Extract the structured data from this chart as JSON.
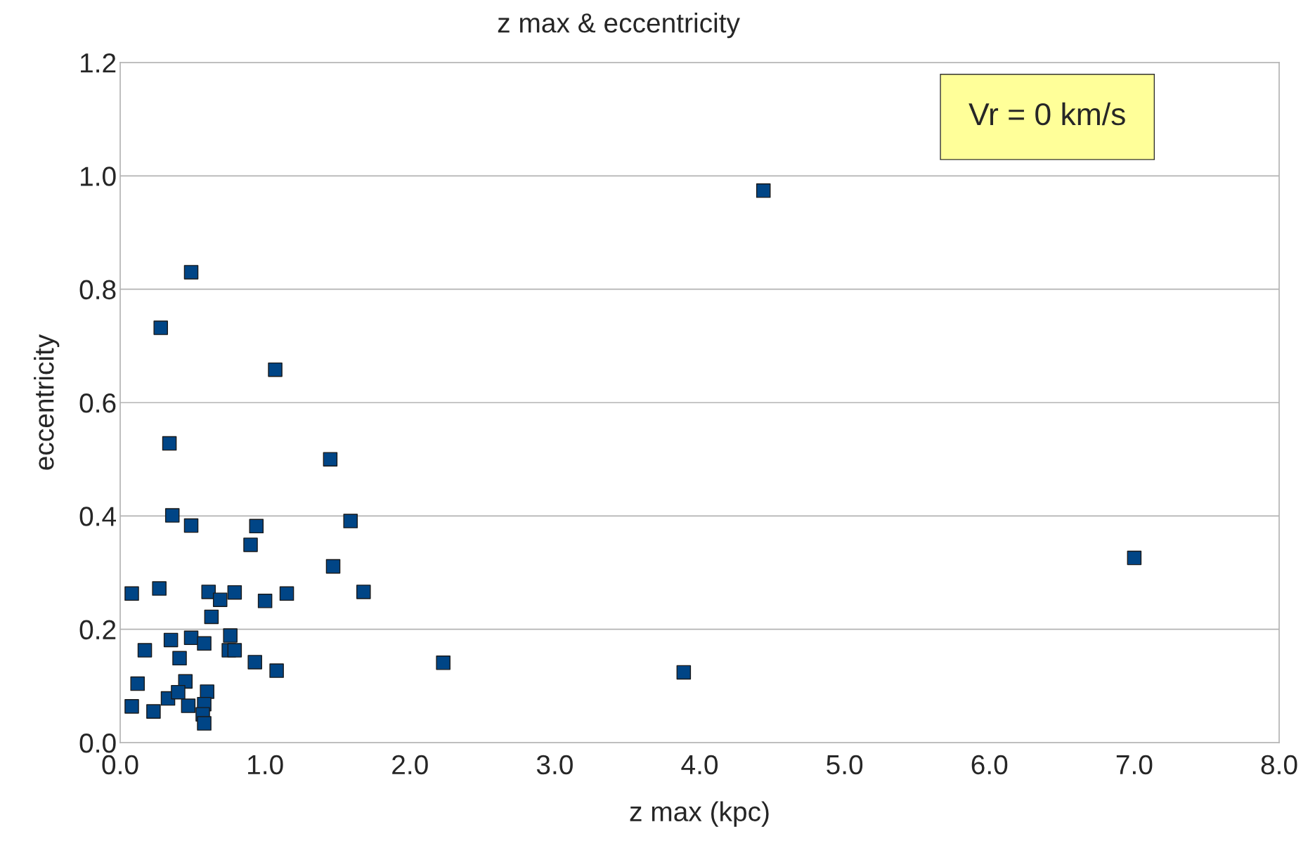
{
  "chart_data": {
    "type": "scatter",
    "title": "z max & eccentricity",
    "xlabel": "z max (kpc)",
    "ylabel": "eccentricity",
    "annotations": [
      "Vr = 0 km/s"
    ],
    "series": [
      {
        "color": "#004586",
        "x": [
          0.49,
          0.28,
          1.07,
          0.34,
          1.45,
          0.36,
          0.49,
          0.94,
          1.59,
          0.9,
          1.47,
          0.08,
          0.27,
          0.61,
          0.79,
          1.15,
          1.68,
          0.69,
          1.0,
          0.63,
          0.17,
          0.35,
          0.49,
          0.58,
          0.76,
          0.75,
          0.79,
          0.41,
          0.93,
          1.08,
          2.23,
          3.89,
          4.44,
          7.0,
          0.12,
          0.45,
          0.33,
          0.4,
          0.6,
          0.58,
          0.47,
          0.08,
          0.23,
          0.57,
          0.58
        ],
        "values": [
          0.83,
          0.732,
          0.658,
          0.528,
          0.5,
          0.401,
          0.383,
          0.382,
          0.391,
          0.349,
          0.311,
          0.263,
          0.272,
          0.266,
          0.265,
          0.263,
          0.266,
          0.252,
          0.25,
          0.222,
          0.163,
          0.181,
          0.185,
          0.175,
          0.189,
          0.163,
          0.163,
          0.149,
          0.142,
          0.127,
          0.141,
          0.124,
          0.974,
          0.326,
          0.104,
          0.108,
          0.078,
          0.089,
          0.09,
          0.068,
          0.065,
          0.064,
          0.055,
          0.05,
          0.034
        ]
      }
    ],
    "marker": "square",
    "xlim": [
      0,
      8
    ],
    "xticks": [
      {
        "value": 0,
        "label": "0.0"
      },
      {
        "value": 1,
        "label": "1.0"
      },
      {
        "value": 2,
        "label": "2.0"
      },
      {
        "value": 3,
        "label": "3.0"
      },
      {
        "value": 4,
        "label": "4.0"
      },
      {
        "value": 5,
        "label": "5.0"
      },
      {
        "value": 6,
        "label": "6.0"
      },
      {
        "value": 7,
        "label": "7.0"
      },
      {
        "value": 8,
        "label": "8.0"
      }
    ],
    "ylim": [
      0,
      1.2
    ],
    "yticks": [
      {
        "value": 0,
        "label": "0.0"
      },
      {
        "value": 0.2,
        "label": "0.2"
      },
      {
        "value": 0.4,
        "label": "0.4"
      },
      {
        "value": 0.6,
        "label": "0.6"
      },
      {
        "value": 0.8,
        "label": "0.8"
      },
      {
        "value": 1.0,
        "label": "1.0"
      },
      {
        "value": 1.2,
        "label": "1.2"
      }
    ],
    "grid": "y"
  }
}
